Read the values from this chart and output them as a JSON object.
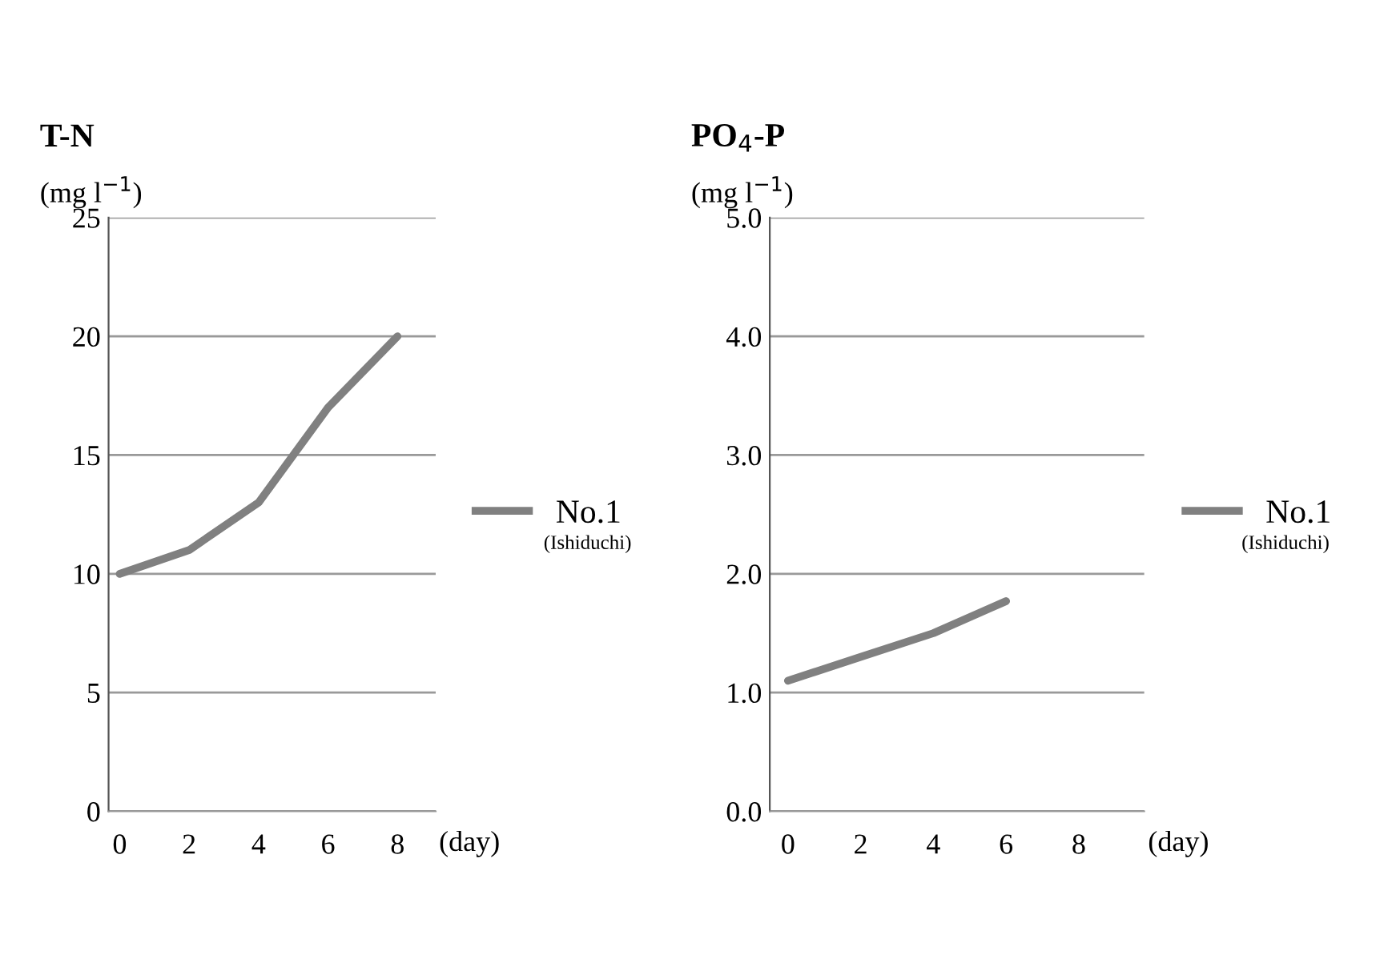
{
  "chart_data": [
    {
      "type": "line",
      "title": "T-N",
      "ylabel": "(mg l$^{−1}$)",
      "xlabel": "(day)",
      "categories": [
        "0",
        "2",
        "4",
        "6",
        "8"
      ],
      "series": [
        {
          "name": "No.1",
          "color": "#808080",
          "values": [
            10,
            11,
            13,
            17,
            20
          ]
        }
      ],
      "ylim": [
        0,
        25
      ],
      "yticks": [
        0,
        5,
        10,
        15,
        20,
        25
      ],
      "grid": "y",
      "legend": "right",
      "marker": "none",
      "line_style": "solid",
      "annotations": [
        "(Ishiduchi)"
      ]
    },
    {
      "type": "line",
      "title": "PO$_{4}$-P",
      "ylabel": "(mg l$^{−1}$)",
      "xlabel": "(day)",
      "categories": [
        "0",
        "2",
        "4",
        "6",
        "8"
      ],
      "series": [
        {
          "name": "No.1",
          "color": "#808080",
          "values": [
            1.1,
            1.3,
            1.5,
            1.77,
            null
          ]
        }
      ],
      "ylim": [
        0,
        5
      ],
      "yticks": [
        {
          "value": 0,
          "label": "0.0"
        },
        {
          "value": 1,
          "label": "1.0"
        },
        {
          "value": 2,
          "label": "2.0"
        },
        {
          "value": 3,
          "label": "3.0"
        },
        {
          "value": 4,
          "label": "4.0"
        },
        {
          "value": 5,
          "label": "5.0"
        }
      ],
      "grid": "y",
      "legend": "right",
      "marker": "none",
      "line_style": "solid",
      "annotations": [
        "(Ishiduchi)"
      ]
    }
  ]
}
